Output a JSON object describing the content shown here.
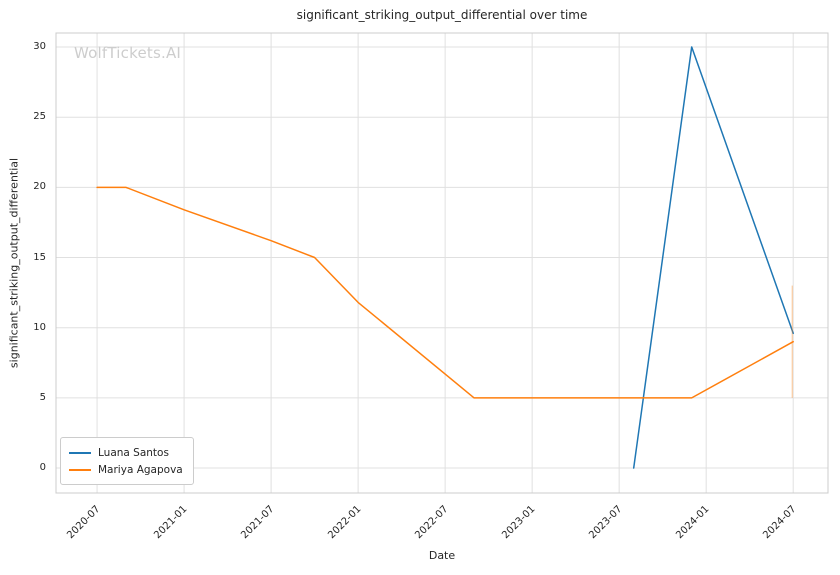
{
  "figure": {
    "watermark": "WolfTickets.AI"
  },
  "chart_data": {
    "type": "line",
    "title": "significant_striking_output_differential over time",
    "xlabel": "Date",
    "ylabel": "significant_striking_output_differential",
    "x_tick_labels": [
      "2020-07",
      "2021-01",
      "2021-07",
      "2022-01",
      "2022-07",
      "2023-01",
      "2023-07",
      "2024-01",
      "2024-07"
    ],
    "y_ticks": [
      0,
      5,
      10,
      15,
      20,
      25,
      30
    ],
    "xlim_years": [
      2020.264,
      2024.7
    ],
    "ylim": [
      -1.78,
      31.0
    ],
    "grid": true,
    "legend_position": "lower-left",
    "series": [
      {
        "name": "Luana Santos",
        "color": "#1f77b4",
        "points": [
          [
            "2023-08",
            0
          ],
          [
            "2023-12",
            30
          ],
          [
            "2024-07",
            9.6
          ]
        ]
      },
      {
        "name": "Mariya Agapova",
        "color": "#ff7f0e",
        "points": [
          [
            "2020-07",
            20
          ],
          [
            "2020-09",
            20
          ],
          [
            "2021-01",
            18.4
          ],
          [
            "2021-07",
            16.2
          ],
          [
            "2021-10",
            15
          ],
          [
            "2022-01",
            11.8
          ],
          [
            "2022-09",
            5
          ],
          [
            "2023-12",
            5
          ],
          [
            "2024-07",
            9
          ]
        ]
      }
    ],
    "annotations": [
      {
        "type": "vertical-segment",
        "date": "2024-07",
        "y_from": 5,
        "y_to": 13,
        "color": "#ff7f0e",
        "opacity": 0.45
      }
    ]
  }
}
